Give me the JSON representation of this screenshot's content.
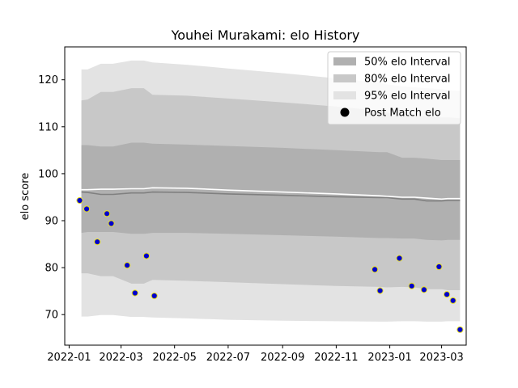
{
  "chart_data": {
    "type": "line",
    "title": "Youhei Murakami: elo History",
    "xlabel": "",
    "ylabel": "elo score",
    "xlim": [
      "2021-12-27",
      "2023-03-29"
    ],
    "ylim": [
      63.5,
      127
    ],
    "x_ticks": [
      "2022-01",
      "2022-03",
      "2022-05",
      "2022-07",
      "2022-09",
      "2022-11",
      "2023-01",
      "2023-03"
    ],
    "y_ticks": [
      70,
      80,
      90,
      100,
      110,
      120
    ],
    "grid": false,
    "legend_position": "top-right",
    "legend": [
      {
        "label": "50% elo Interval",
        "kind": "band",
        "fill": "#b0b0b0"
      },
      {
        "label": "80% elo Interval",
        "kind": "band",
        "fill": "#c8c8c8"
      },
      {
        "label": "95% elo Interval",
        "kind": "band",
        "fill": "#e3e3e3"
      },
      {
        "label": "Post Match elo",
        "kind": "marker",
        "fill": "#000000"
      }
    ],
    "bands": {
      "x": [
        "2022-01-15",
        "2022-01-22",
        "2022-02-06",
        "2022-02-20",
        "2022-03-13",
        "2022-03-27",
        "2022-04-06",
        "2022-05-15",
        "2022-07-01",
        "2022-09-01",
        "2022-11-01",
        "2022-12-20",
        "2022-12-29",
        "2023-01-15",
        "2023-01-29",
        "2023-02-12",
        "2023-03-01",
        "2023-03-08",
        "2023-03-22"
      ],
      "mean": [
        96.1,
        96.0,
        95.6,
        95.6,
        95.9,
        95.9,
        96.1,
        96.0,
        95.7,
        95.4,
        95.1,
        94.9,
        94.9,
        94.6,
        94.6,
        94.2,
        94.2,
        94.3,
        94.3
      ],
      "upper_line": [
        96.6,
        96.6,
        96.7,
        96.7,
        96.8,
        96.8,
        97.0,
        96.9,
        96.5,
        96.1,
        95.7,
        95.3,
        95.2,
        95.0,
        95.0,
        94.8,
        94.6,
        94.7,
        94.7
      ],
      "p50": [
        [
          87.4,
          106.1
        ],
        [
          87.6,
          106.1
        ],
        [
          87.6,
          105.8
        ],
        [
          87.6,
          105.8
        ],
        [
          87.2,
          106.6
        ],
        [
          87.2,
          106.6
        ],
        [
          87.4,
          106.4
        ],
        [
          87.4,
          106.2
        ],
        [
          87.2,
          105.9
        ],
        [
          86.9,
          105.5
        ],
        [
          86.6,
          105.0
        ],
        [
          86.3,
          104.6
        ],
        [
          86.3,
          104.6
        ],
        [
          86.2,
          103.4
        ],
        [
          86.2,
          103.4
        ],
        [
          85.9,
          103.2
        ],
        [
          85.8,
          102.9
        ],
        [
          85.9,
          102.9
        ],
        [
          85.9,
          102.9
        ]
      ],
      "p80": [
        [
          78.8,
          115.6
        ],
        [
          78.8,
          115.8
        ],
        [
          78.2,
          117.4
        ],
        [
          78.2,
          117.4
        ],
        [
          76.6,
          118.2
        ],
        [
          76.6,
          118.2
        ],
        [
          77.4,
          116.8
        ],
        [
          77.2,
          116.6
        ],
        [
          76.9,
          116.0
        ],
        [
          76.5,
          115.2
        ],
        [
          76.1,
          114.3
        ],
        [
          75.9,
          113.4
        ],
        [
          75.8,
          113.0
        ],
        [
          75.9,
          112.6
        ],
        [
          75.8,
          112.4
        ],
        [
          75.4,
          112.2
        ],
        [
          75.4,
          112.0
        ],
        [
          75.2,
          112.0
        ],
        [
          75.2,
          111.8
        ]
      ],
      "p95": [
        [
          69.6,
          122.2
        ],
        [
          69.6,
          122.2
        ],
        [
          69.9,
          123.4
        ],
        [
          69.9,
          123.4
        ],
        [
          69.5,
          124.1
        ],
        [
          69.5,
          124.1
        ],
        [
          69.4,
          123.7
        ],
        [
          69.2,
          123.2
        ],
        [
          68.9,
          122.4
        ],
        [
          68.7,
          121.4
        ],
        [
          68.6,
          120.3
        ],
        [
          68.5,
          119.4
        ],
        [
          68.5,
          119.0
        ],
        [
          68.6,
          118.6
        ],
        [
          68.6,
          118.4
        ],
        [
          68.5,
          118.2
        ],
        [
          68.5,
          118.0
        ],
        [
          68.6,
          117.8
        ],
        [
          68.6,
          117.6
        ]
      ]
    },
    "points": {
      "name": "Post Match elo",
      "color": "#0000cc",
      "edge_color": "#e8e020",
      "x": [
        "2022-01-13",
        "2022-01-21",
        "2022-02-02",
        "2022-02-13",
        "2022-02-18",
        "2022-03-08",
        "2022-03-17",
        "2022-03-30",
        "2022-04-08",
        "2022-12-15",
        "2022-12-21",
        "2023-01-12",
        "2023-01-26",
        "2023-02-09",
        "2023-02-26",
        "2023-03-07",
        "2023-03-14",
        "2023-03-22"
      ],
      "y": [
        94.3,
        92.5,
        85.5,
        91.5,
        89.4,
        80.5,
        74.6,
        82.5,
        74.0,
        79.6,
        75.1,
        82.0,
        76.1,
        75.3,
        80.2,
        74.3,
        73.0,
        66.8
      ]
    }
  }
}
